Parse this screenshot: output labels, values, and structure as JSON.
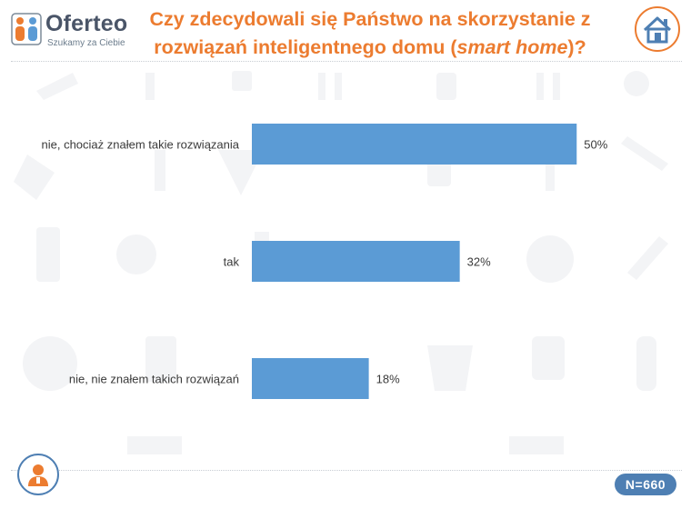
{
  "brand": {
    "name": "Oferteo",
    "tagline": "Szukamy za Ciebie"
  },
  "title": {
    "main": "Czy zdecydowali się Państwo na skorzystanie z rozwiązań inteligentnego domu (",
    "emphasis": "smart home",
    "suffix": ")?"
  },
  "sample_size": "N=660",
  "colors": {
    "bar": "#5b9bd5",
    "title": "#ec7c30",
    "badge": "#4e7fb3"
  },
  "icons": {
    "header_right": "house-icon",
    "footer_left": "person-icon"
  },
  "chart_data": {
    "type": "bar",
    "orientation": "horizontal",
    "categories": [
      "nie, chociaż znałem takie rozwiązania",
      "tak",
      "nie, nie znałem takich rozwiązań"
    ],
    "values": [
      50,
      32,
      18
    ],
    "value_labels": [
      "50%",
      "32%",
      "18%"
    ],
    "unit": "%",
    "xlim": [
      0,
      55
    ],
    "grid": false,
    "legend": "none"
  }
}
